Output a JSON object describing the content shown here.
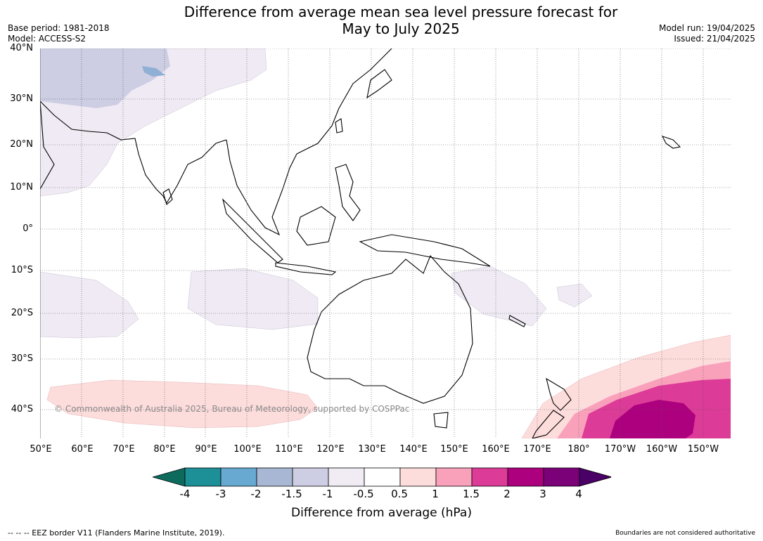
{
  "title_line1": "Difference from average mean sea level pressure forecast for",
  "title_line2": "May to July 2025",
  "base_period": "Base period: 1981-2018",
  "model": "Model: ACCESS-S2",
  "model_run": "Model run: 19/04/2025",
  "issued": "Issued: 21/04/2025",
  "lat_labels": [
    "40°N",
    "30°N",
    "20°N",
    "10°N",
    "0°",
    "10°S",
    "20°S",
    "30°S",
    "40°S"
  ],
  "lon_labels": [
    "50°E",
    "60°E",
    "70°E",
    "80°E",
    "90°E",
    "100°E",
    "110°E",
    "120°E",
    "130°E",
    "140°E",
    "150°E",
    "160°E",
    "170°E",
    "180°",
    "170°W",
    "160°W",
    "150°W"
  ],
  "copyright": "© Commonwealth of Australia 2025, Bureau of Meteorology, supported by COSPPac",
  "colorbar": {
    "label": "Difference from average (hPa)",
    "tick_labels": [
      "-4",
      "-3",
      "-2",
      "-1.5",
      "-1",
      "-0.5",
      "0.5",
      "1",
      "1.5",
      "2",
      "3",
      "4"
    ],
    "colors": [
      "#0d6b5e",
      "#1d8f96",
      "#68a9d2",
      "#a8b8d4",
      "#cdcde3",
      "#f1ecf4",
      "#ffffff",
      "#fddcdc",
      "#f9a1bb",
      "#dc3b97",
      "#ad007f",
      "#7a0177",
      "#4a0066"
    ]
  },
  "footer_left": "--  --  -- EEZ border V11 (Flanders Marine Institute, 2019).",
  "footer_right": "Boundaries are not considered authoritative"
}
